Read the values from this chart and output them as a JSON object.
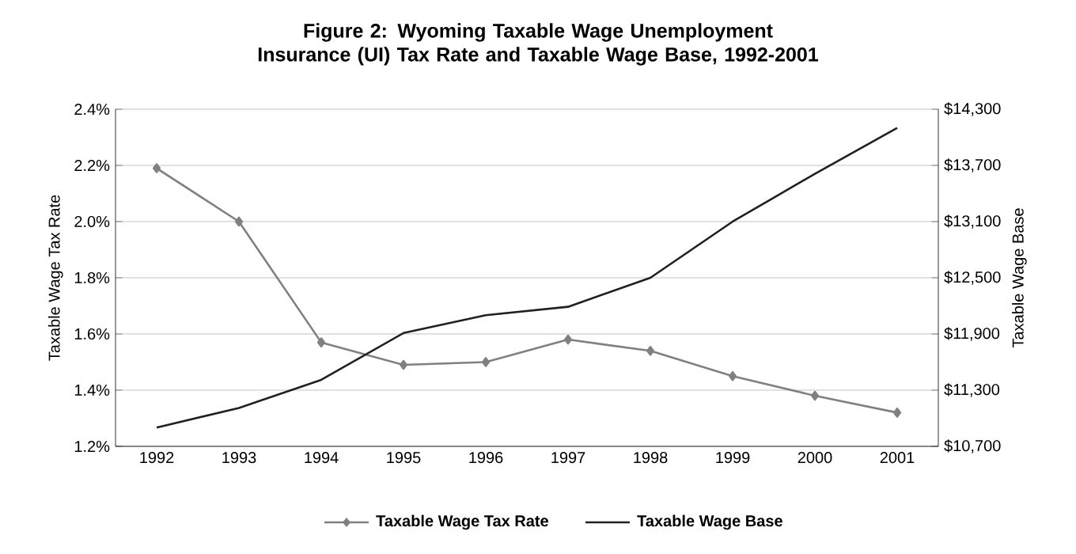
{
  "chart_data": {
    "type": "line",
    "title": "Figure 2:  Wyoming Taxable Wage Unemployment Insurance (UI) Tax Rate and Taxable Wage Base, 1992-2001",
    "ylabel": "Taxable Wage Tax Rate",
    "y2label": "Taxable Wage Base",
    "categories": [
      "1992",
      "1993",
      "1994",
      "1995",
      "1996",
      "1997",
      "1998",
      "1999",
      "2000",
      "2001"
    ],
    "series": [
      {
        "name": "Taxable Wage Tax Rate",
        "color": "#808080",
        "marker": "diamond",
        "values": [
          2.19,
          2.0,
          1.57,
          1.49,
          1.5,
          1.58,
          1.54,
          1.45,
          1.38,
          1.32
        ]
      },
      {
        "name": "Taxable Wage Base",
        "color": "#202020",
        "marker": "none",
        "axis": "y2",
        "values": [
          10900,
          11110,
          11410,
          11910,
          12100,
          12190,
          12500,
          13100,
          13610,
          14100
        ]
      }
    ],
    "ylim": [
      1.2,
      2.4
    ],
    "yticks": [
      {
        "value": 1.2,
        "label": "1.2%"
      },
      {
        "value": 1.4,
        "label": "1.4%"
      },
      {
        "value": 1.6,
        "label": "1.6%"
      },
      {
        "value": 1.8,
        "label": "1.8%"
      },
      {
        "value": 2.0,
        "label": "2.0%"
      },
      {
        "value": 2.2,
        "label": "2.2%"
      },
      {
        "value": 2.4,
        "label": "2.4%"
      }
    ],
    "y2lim": [
      10700,
      14300
    ],
    "y2ticks": [
      {
        "value": 10700,
        "label": "$10,700"
      },
      {
        "value": 11300,
        "label": "$11,300"
      },
      {
        "value": 11900,
        "label": "$11,900"
      },
      {
        "value": 12500,
        "label": "$12,500"
      },
      {
        "value": 13100,
        "label": "$13,100"
      },
      {
        "value": 13700,
        "label": "$13,700"
      },
      {
        "value": 14300,
        "label": "$14,300"
      }
    ],
    "grid": "y",
    "legend": "bottom",
    "line_style": "solid"
  }
}
